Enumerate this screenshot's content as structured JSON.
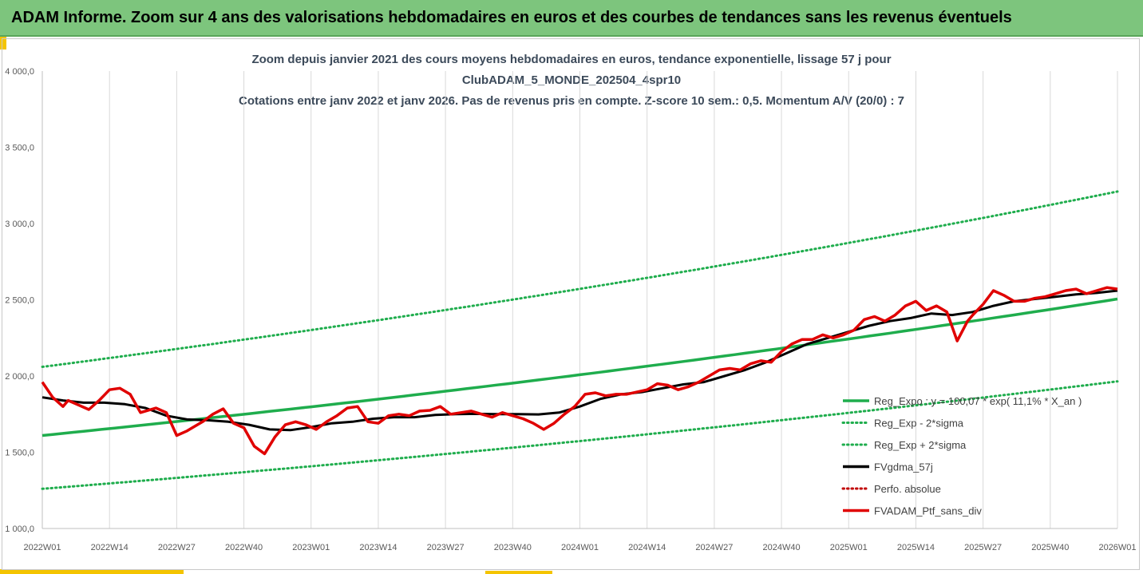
{
  "header": {
    "title": "ADAM Informe. Zoom sur 4 ans des valorisations hebdomadaires en euros et des courbes de tendances sans les revenus éventuels"
  },
  "colors": {
    "banner": "#7dc57d",
    "accent": "#f4c400",
    "trend_green": "#1fad4d",
    "smooth_black": "#000000",
    "price_red": "#e00000",
    "perfo_red": "#c00000"
  },
  "chart_data": {
    "type": "line",
    "title_lines": [
      "Zoom depuis janvier 2021 des cours moyens hebdomadaires  en euros, tendance exponentielle, lissage 57 j pour",
      "ClubADAM_5_MONDE_202504_4spr10",
      "Cotations entre janv 2022 et janv 2026. Pas de revenus pris en compte. Z-score 10 sem.: 0,5. Momentum A/V (20/0) : 7"
    ],
    "x_tick_labels": [
      "2022W01",
      "2022W14",
      "2022W27",
      "2022W40",
      "2023W01",
      "2023W14",
      "2023W27",
      "2023W40",
      "2024W01",
      "2024W14",
      "2024W27",
      "2024W40",
      "2025W01",
      "2025W14",
      "2025W27",
      "2025W40",
      "2026W01"
    ],
    "y_tick_labels": [
      "4 000,0",
      "3 500,0",
      "3 000,0",
      "2 500,0",
      "2 000,0",
      "1 500,0",
      "1 000,0"
    ],
    "ylim": [
      1000,
      4000
    ],
    "grid": "vertical",
    "legend_position": "bottom-right",
    "legend": [
      {
        "label": "Reg_Expo : y = 100,07 * exp( 11,1% *  X_an )",
        "color": "#1fad4d",
        "style": "solid"
      },
      {
        "label": "Reg_Exp - 2*sigma",
        "color": "#1fad4d",
        "style": "dotted"
      },
      {
        "label": "Reg_Exp + 2*sigma",
        "color": "#1fad4d",
        "style": "dotted"
      },
      {
        "label": "FVgdma_57j",
        "color": "#000000",
        "style": "solid"
      },
      {
        "label": "Perfo. absolue",
        "color": "#c00000",
        "style": "dotted"
      },
      {
        "label": "FVADAM_Ptf_sans_div",
        "color": "#e00000",
        "style": "solid"
      }
    ],
    "series": [
      {
        "name": "Reg_Expo : y = 100,07 * exp( 11,1% *  X_an )",
        "kind": "trend",
        "start": 1610,
        "end": 2505
      },
      {
        "name": "Reg_Exp - 2*sigma",
        "kind": "band_low",
        "start": 1260,
        "end": 1965
      },
      {
        "name": "Reg_Exp + 2*sigma",
        "kind": "band_high",
        "start": 2060,
        "end": 3210
      },
      {
        "name": "FVgdma_57j",
        "x": [
          0,
          4,
          8,
          12,
          16,
          20,
          24,
          28,
          32,
          36,
          40,
          44,
          48,
          52,
          56,
          60,
          64,
          68,
          72,
          76,
          80,
          84,
          88,
          92,
          96,
          100,
          104,
          108,
          112,
          116,
          120,
          124,
          128,
          132,
          136,
          140,
          144,
          148,
          152,
          156,
          160,
          164,
          168,
          172,
          176,
          180,
          184,
          188,
          192,
          196,
          200,
          204,
          208
        ],
        "values": [
          1860,
          1840,
          1825,
          1825,
          1815,
          1790,
          1740,
          1715,
          1710,
          1700,
          1680,
          1650,
          1645,
          1665,
          1690,
          1700,
          1720,
          1730,
          1730,
          1745,
          1750,
          1752,
          1750,
          1750,
          1748,
          1760,
          1800,
          1850,
          1880,
          1895,
          1920,
          1945,
          1960,
          2000,
          2040,
          2090,
          2150,
          2210,
          2250,
          2290,
          2330,
          2360,
          2380,
          2410,
          2400,
          2420,
          2460,
          2490,
          2505,
          2520,
          2535,
          2545,
          2560
        ]
      },
      {
        "name": "FVADAM_Ptf_sans_div",
        "x": [
          0,
          2,
          4,
          5,
          7,
          9,
          11,
          13,
          15,
          17,
          19,
          22,
          24,
          26,
          28,
          29,
          31,
          33,
          35,
          37,
          39,
          41,
          43,
          45,
          47,
          49,
          51,
          53,
          55,
          57,
          59,
          61,
          63,
          65,
          67,
          69,
          71,
          73,
          75,
          77,
          79,
          81,
          83,
          85,
          87,
          89,
          91,
          93,
          95,
          97,
          99,
          101,
          103,
          105,
          107,
          109,
          111,
          113,
          115,
          117,
          119,
          121,
          123,
          125,
          127,
          129,
          131,
          133,
          135,
          137,
          139,
          141,
          143,
          145,
          147,
          149,
          151,
          153,
          155,
          157,
          159,
          161,
          163,
          165,
          167,
          169,
          171,
          173,
          175,
          177,
          179,
          180,
          182,
          184,
          186,
          188,
          190,
          192,
          194,
          196,
          198,
          200,
          202,
          204,
          206,
          208
        ],
        "values": [
          1960,
          1860,
          1800,
          1840,
          1810,
          1780,
          1840,
          1910,
          1920,
          1880,
          1760,
          1790,
          1760,
          1610,
          1640,
          1660,
          1700,
          1750,
          1785,
          1690,
          1660,
          1540,
          1490,
          1600,
          1680,
          1700,
          1680,
          1650,
          1700,
          1740,
          1790,
          1800,
          1700,
          1690,
          1740,
          1750,
          1740,
          1770,
          1775,
          1800,
          1750,
          1760,
          1770,
          1750,
          1730,
          1760,
          1740,
          1720,
          1690,
          1650,
          1690,
          1750,
          1800,
          1880,
          1890,
          1870,
          1880,
          1880,
          1895,
          1910,
          1950,
          1940,
          1910,
          1930,
          1960,
          2000,
          2040,
          2050,
          2040,
          2080,
          2100,
          2090,
          2160,
          2210,
          2240,
          2240,
          2270,
          2250,
          2270,
          2300,
          2370,
          2390,
          2360,
          2400,
          2460,
          2490,
          2430,
          2460,
          2420,
          2230,
          2360,
          2400,
          2470,
          2560,
          2530,
          2490,
          2490,
          2510,
          2520,
          2540,
          2560,
          2570,
          2540,
          2560,
          2580,
          2570
        ]
      }
    ]
  }
}
